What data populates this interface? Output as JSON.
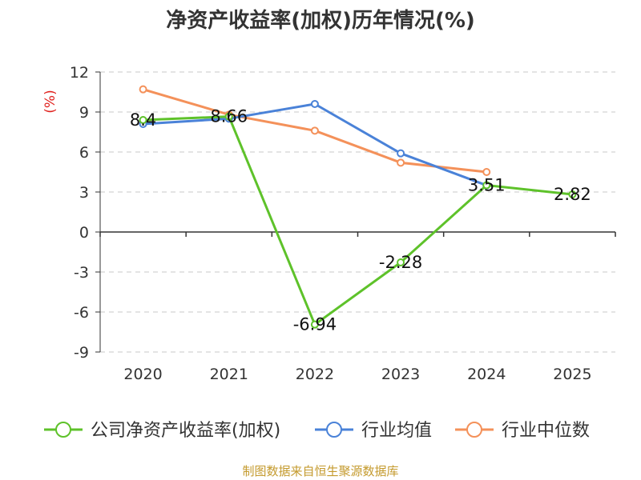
{
  "chart_data": {
    "type": "line",
    "title": "净资产收益率(加权)历年情况(%)",
    "ylabel": "(%)",
    "xlabel": "",
    "categories": [
      "2020",
      "2021",
      "2022",
      "2023",
      "2024",
      "2025"
    ],
    "ylim": [
      -9,
      12
    ],
    "yticks": [
      12,
      9,
      6,
      3,
      0,
      -3,
      -6,
      -9
    ],
    "grid": true,
    "legend_position": "bottom",
    "series": [
      {
        "name": "公司净资产收益率(加权)",
        "color": "#5ec22a",
        "values": [
          8.4,
          8.66,
          -6.94,
          -2.28,
          3.51,
          2.82
        ],
        "labels": [
          "8.4",
          "8.66",
          "-6.94",
          "-2.28",
          "3.51",
          "2.82"
        ]
      },
      {
        "name": "行业均值",
        "color": "#4a82d8",
        "values": [
          8.1,
          8.5,
          9.6,
          5.9,
          3.5,
          null
        ]
      },
      {
        "name": "行业中位数",
        "color": "#f4915a",
        "values": [
          10.7,
          8.8,
          7.6,
          5.2,
          4.5,
          null
        ]
      }
    ]
  },
  "source": "制图数据来自恒生聚源数据库"
}
